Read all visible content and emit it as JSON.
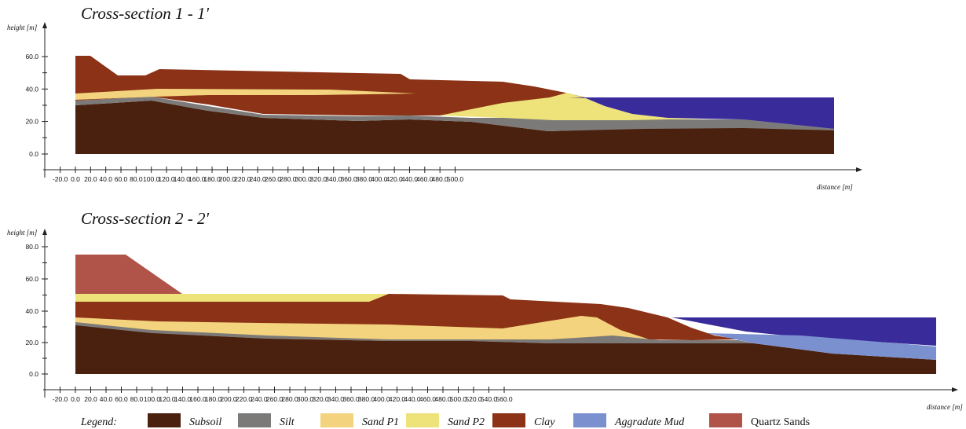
{
  "legend_title": "Legend:",
  "layers": [
    {
      "key": "subsoil",
      "label": "Subsoil",
      "color": "#4a200e"
    },
    {
      "key": "silt",
      "label": "Silt",
      "color": "#7c7a78"
    },
    {
      "key": "sandp1",
      "label": "Sand P1",
      "color": "#f4d37e"
    },
    {
      "key": "sandp2",
      "label": "Sand P2",
      "color": "#ede37a"
    },
    {
      "key": "clay",
      "label": "Clay",
      "color": "#8c3216"
    },
    {
      "key": "mud",
      "label": "Aggradate Mud",
      "color": "#7b90cf"
    },
    {
      "key": "quartz",
      "label": "Quartz Sands",
      "color": "#b0544a"
    }
  ],
  "water_color": "#3a2b9a",
  "sections": [
    {
      "title": "Cross-section 1 - 1'",
      "ylabel": "height [m]",
      "xlabel": "distance  [m]",
      "xlim": [
        -20,
        500
      ],
      "ylim": [
        0,
        60
      ],
      "xticks": [
        "-20.0",
        "0.0",
        "20.0",
        "40.0",
        "60.0",
        "80.0",
        "100.0",
        "120.0",
        "140.0",
        "160.0",
        "180.0",
        "200.0",
        "220.0",
        "240.0",
        "260.0",
        "280.0",
        "300.0",
        "320.0",
        "340.0",
        "360.0",
        "380.0",
        "400.0",
        "420.0",
        "440.0",
        "460.0",
        "480.0",
        "500.0"
      ],
      "yticks": [
        "0.0",
        "20.0",
        "40.0",
        "60.0"
      ]
    },
    {
      "title": "Cross-section 2 - 2'",
      "ylabel": "height [m]",
      "xlabel": "distance  [m]",
      "xlim": [
        -20,
        560
      ],
      "ylim": [
        0,
        80
      ],
      "xticks": [
        "-20.0",
        "0.0",
        "20.0",
        "40.0",
        "60.0",
        "80.0",
        "100.0",
        "120.0",
        "140.0",
        "160.0",
        "180.0",
        "200.0",
        "220.0",
        "240.0",
        "260.0",
        "280.0",
        "300.0",
        "320.0",
        "340.0",
        "360.0",
        "380.0",
        "400.0",
        "420.0",
        "440.0",
        "460.0",
        "480.0",
        "500.0",
        "520.0",
        "540.0",
        "560.0"
      ],
      "yticks": [
        "0.0",
        "20.0",
        "40.0",
        "60.0",
        "80.0"
      ]
    }
  ]
}
